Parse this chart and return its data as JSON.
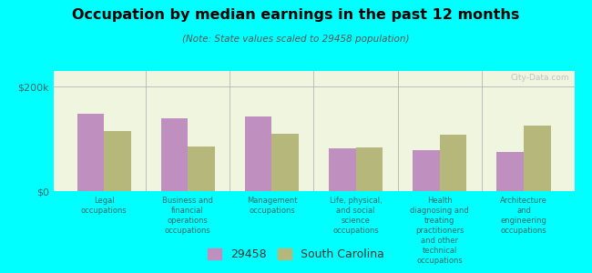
{
  "title": "Occupation by median earnings in the past 12 months",
  "subtitle": "(Note: State values scaled to 29458 population)",
  "background_color": "#00FFFF",
  "plot_bg_color": "#f0f5e0",
  "categories": [
    "Legal\noccupations",
    "Business and\nfinancial\noperations\noccupations",
    "Management\noccupations",
    "Life, physical,\nand social\nscience\noccupations",
    "Health\ndiagnosing and\ntreating\npractitioners\nand other\ntechnical\noccupations",
    "Architecture\nand\nengineering\noccupations"
  ],
  "values_29458": [
    148000,
    140000,
    143000,
    82000,
    79000,
    75000
  ],
  "values_sc": [
    115000,
    85000,
    110000,
    84000,
    108000,
    125000
  ],
  "color_29458": "#bf8fbf",
  "color_sc": "#b5b87a",
  "ylim": [
    0,
    230000
  ],
  "yticks": [
    0,
    200000
  ],
  "ytick_labels": [
    "$0",
    "$200k"
  ],
  "legend_labels": [
    "29458",
    "South Carolina"
  ],
  "bar_width": 0.32,
  "watermark": "City-Data.com"
}
